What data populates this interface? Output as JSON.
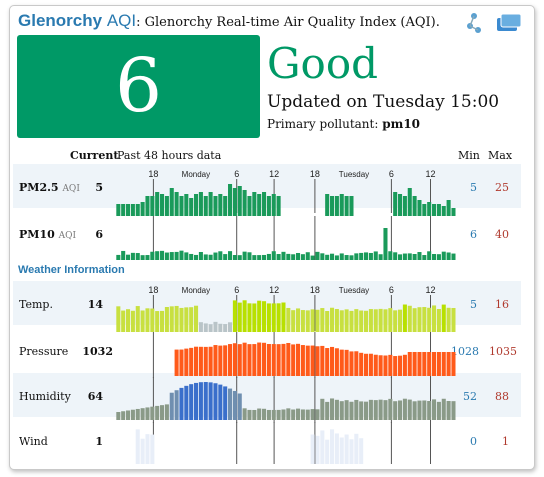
{
  "header": {
    "brand_name": "Glenorchy",
    "brand_aqi": "AQI",
    "subtitle": ": Glenorchy Real-time Air Quality Index (AQI)."
  },
  "aqi": {
    "value": "6",
    "status": "Good",
    "updated": "Updated on Tuesday 15:00",
    "pollutant_label": "Primary pollutant:",
    "pollutant_value": "pm10"
  },
  "columns": {
    "current": "Current",
    "history": "Past 48 hours data",
    "min": "Min",
    "max": "Max"
  },
  "time_labels": {
    "top": [
      "18",
      "Monday",
      "6",
      "12",
      "18",
      "Tuesday",
      "6",
      "12"
    ]
  },
  "weather_title": "Weather Information",
  "rows": [
    {
      "label": "PM2.5",
      "sub": "AQI",
      "current": "5",
      "min": "5",
      "max": "25"
    },
    {
      "label": "PM10",
      "sub": "AQI",
      "current": "6",
      "min": "6",
      "max": "40"
    },
    {
      "label": "Temp.",
      "sub": "",
      "current": "14",
      "min": "5",
      "max": "16"
    },
    {
      "label": "Pressure",
      "sub": "",
      "current": "1032",
      "min": "1028",
      "max": "1035"
    },
    {
      "label": "Humidity",
      "sub": "",
      "current": "64",
      "min": "52",
      "max": "88"
    },
    {
      "label": "Wind",
      "sub": "",
      "current": "1",
      "min": "0",
      "max": "1"
    }
  ],
  "colors": {
    "good": "#009966",
    "brand": "#2a7ab0",
    "max": "#b03a2e"
  },
  "icons": [
    "share-icon",
    "windows-icon"
  ]
}
